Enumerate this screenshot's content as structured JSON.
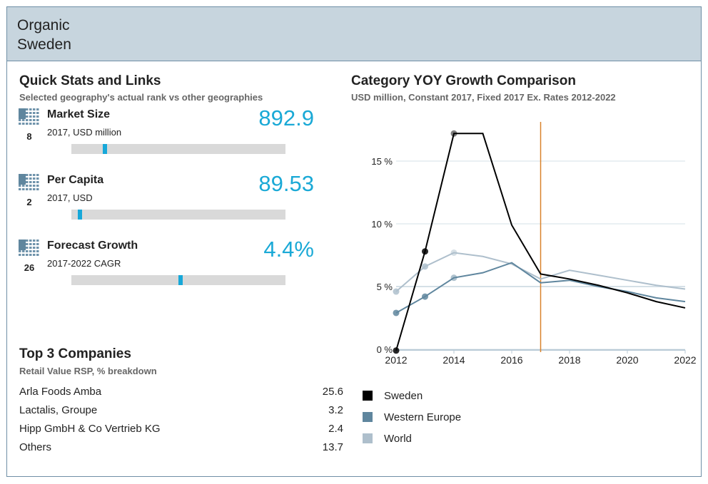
{
  "header": {
    "line1": "Organic",
    "line2": "Sweden"
  },
  "quick_stats": {
    "title": "Quick Stats and Links",
    "subtitle": "Selected geography's actual rank vs other geographies",
    "items": [
      {
        "name": "Market Size",
        "unit": "2017, USD million",
        "value": "892.9",
        "rank": "8",
        "bar_position_pct": 15
      },
      {
        "name": "Per Capita",
        "unit": "2017, USD",
        "value": "89.53",
        "rank": "2",
        "bar_position_pct": 3
      },
      {
        "name": "Forecast Growth",
        "unit": "2017-2022 CAGR",
        "value": "4.4%",
        "rank": "26",
        "bar_position_pct": 51
      }
    ],
    "accent": "#17a8d9"
  },
  "companies": {
    "title": "Top 3 Companies",
    "subtitle": "Retail Value RSP, % breakdown",
    "rows": [
      {
        "name": "Arla Foods Amba",
        "value": "25.6"
      },
      {
        "name": "Lactalis, Groupe",
        "value": "3.2"
      },
      {
        "name": "Hipp GmbH & Co Vertrieb KG",
        "value": "2.4"
      },
      {
        "name": "Others",
        "value": "13.7"
      }
    ]
  },
  "chart_data": {
    "type": "line",
    "title": "Category YOY Growth Comparison",
    "subtitle": "USD million, Constant 2017, Fixed 2017 Ex. Rates 2012-2022",
    "x": [
      2012,
      2013,
      2014,
      2015,
      2016,
      2017,
      2018,
      2019,
      2020,
      2021,
      2022
    ],
    "xticks": [
      "2012",
      "2014",
      "2016",
      "2018",
      "2020",
      "2022"
    ],
    "yticks": [
      "0 %",
      "5 %",
      "10 %",
      "15 %"
    ],
    "ylim": [
      0,
      17.5
    ],
    "xlim": [
      2012,
      2022
    ],
    "grid": true,
    "forecast_line_x": 2017,
    "forecast_line_color": "#d9822b",
    "legend_position": "bottom-left",
    "series": [
      {
        "name": "Sweden",
        "color": "#000000",
        "values": [
          -0.1,
          7.8,
          17.2,
          17.2,
          9.9,
          6.0,
          5.6,
          5.1,
          4.5,
          3.8,
          3.3
        ]
      },
      {
        "name": "Western Europe",
        "color": "#5f869e",
        "values": [
          2.9,
          4.2,
          5.7,
          6.1,
          6.9,
          5.3,
          5.5,
          5.0,
          4.6,
          4.1,
          3.8
        ]
      },
      {
        "name": "World",
        "color": "#aebfcc",
        "values": [
          4.6,
          6.6,
          7.7,
          7.4,
          6.8,
          5.6,
          6.3,
          5.9,
          5.5,
          5.1,
          4.8
        ]
      }
    ]
  }
}
